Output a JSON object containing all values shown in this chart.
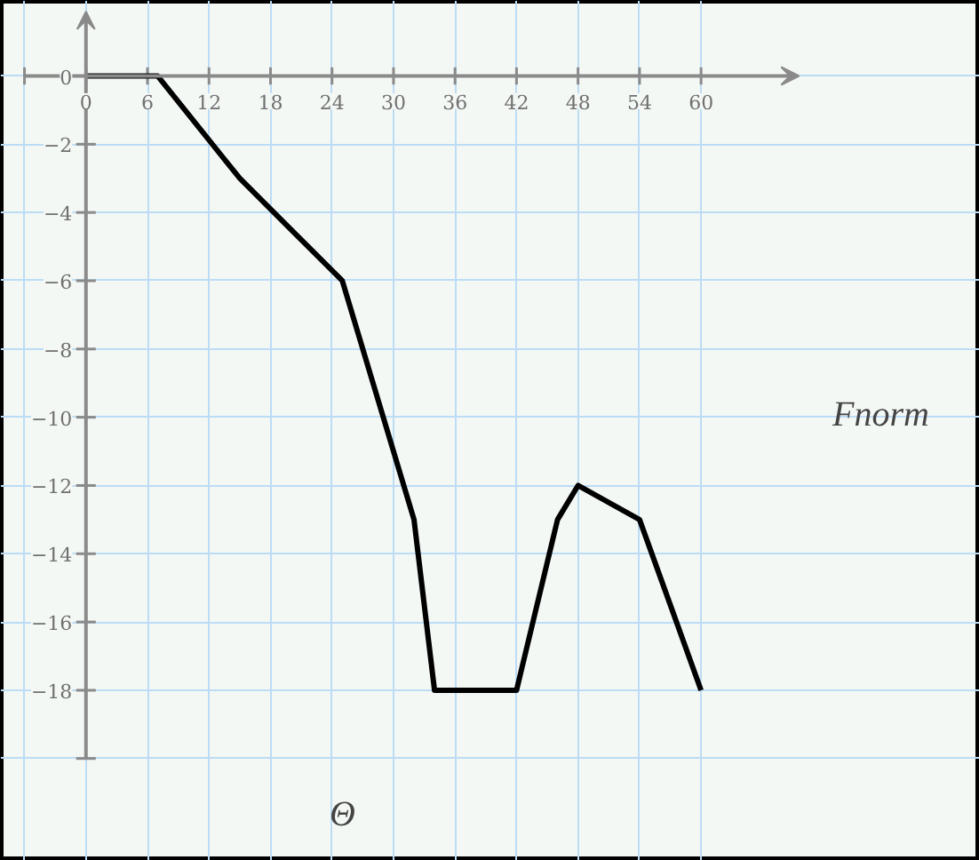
{
  "chart_data": {
    "type": "line",
    "xlabel": "Θ",
    "ylabel": "Fnorm",
    "x": [
      0,
      7,
      15,
      25,
      32,
      34,
      42,
      46,
      48,
      54,
      60
    ],
    "series": [
      {
        "color": "#000000",
        "values": [
          0,
          0,
          -3,
          -6,
          -13,
          -18,
          -18,
          -13,
          -12,
          -13,
          -18
        ]
      }
    ],
    "xlim": [
      -8.3,
      87.2
    ],
    "ylim": [
      -23,
      2.2
    ],
    "xticks": [
      {
        "value": -6,
        "label": null
      },
      0,
      6,
      12,
      18,
      24,
      30,
      36,
      42,
      48,
      54,
      60
    ],
    "yticks": [
      {
        "value": -20,
        "label": null
      },
      -18,
      -16,
      -14,
      -12,
      -10,
      -8,
      -6,
      -4,
      -2,
      0
    ],
    "grid": true,
    "marker": "none",
    "line_style": "solid"
  }
}
